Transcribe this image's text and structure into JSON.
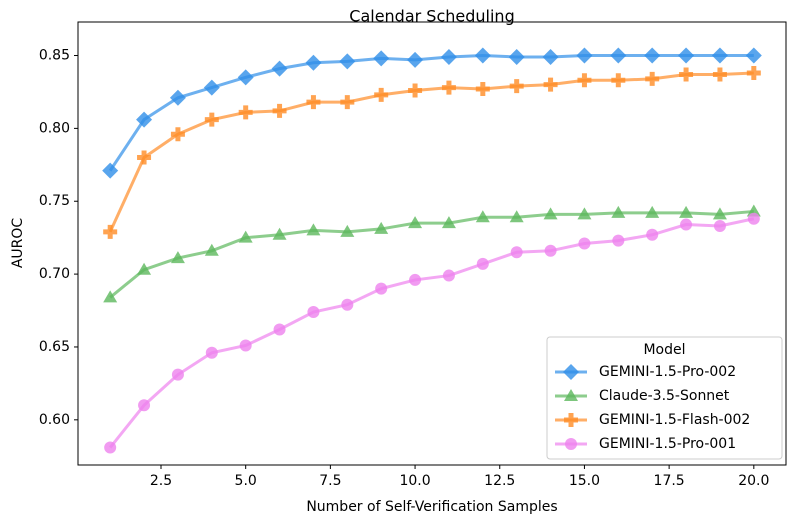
{
  "chart_data": {
    "type": "line",
    "title": "Calendar Scheduling",
    "x_label": "Number of Self-Verification Samples",
    "y_label": "AUROC",
    "x": [
      1,
      2,
      3,
      4,
      5,
      6,
      7,
      8,
      9,
      10,
      11,
      12,
      13,
      14,
      15,
      16,
      17,
      18,
      19,
      20
    ],
    "series": [
      {
        "name": "GEMINI-1.5-Pro-002",
        "color": "#2f8ee8",
        "marker": "diamond",
        "values": [
          0.771,
          0.806,
          0.821,
          0.828,
          0.835,
          0.841,
          0.845,
          0.846,
          0.848,
          0.847,
          0.849,
          0.85,
          0.849,
          0.849,
          0.85,
          0.85,
          0.85,
          0.85,
          0.85,
          0.85
        ]
      },
      {
        "name": "Claude-3.5-Sonnet",
        "color": "#5cb85c",
        "marker": "triangle",
        "values": [
          0.684,
          0.703,
          0.711,
          0.716,
          0.725,
          0.727,
          0.73,
          0.729,
          0.731,
          0.735,
          0.735,
          0.739,
          0.739,
          0.741,
          0.741,
          0.742,
          0.742,
          0.742,
          0.741,
          0.743
        ]
      },
      {
        "name": "GEMINI-1.5-Flash-002",
        "color": "#ff8c26",
        "marker": "plus",
        "values": [
          0.729,
          0.78,
          0.796,
          0.806,
          0.811,
          0.812,
          0.818,
          0.818,
          0.823,
          0.826,
          0.828,
          0.827,
          0.829,
          0.83,
          0.833,
          0.833,
          0.834,
          0.837,
          0.837,
          0.838
        ]
      },
      {
        "name": "GEMINI-1.5-Pro-001",
        "color": "#ee82ee",
        "marker": "circle",
        "values": [
          0.581,
          0.61,
          0.631,
          0.646,
          0.651,
          0.662,
          0.674,
          0.679,
          0.69,
          0.696,
          0.699,
          0.707,
          0.715,
          0.716,
          0.721,
          0.723,
          0.727,
          0.734,
          0.733,
          0.738
        ]
      }
    ],
    "xlim": [
      0.05,
      20.95
    ],
    "ylim": [
      0.569,
      0.873
    ],
    "xticks": [
      2.5,
      {
        "value": 5,
        "label": "5.0"
      },
      7.5,
      {
        "value": 10,
        "label": "10.0"
      },
      12.5,
      {
        "value": 15,
        "label": "15.0"
      },
      17.5,
      {
        "value": 20,
        "label": "20.0"
      }
    ],
    "yticks": [
      {
        "value": 0.6,
        "label": "0.60"
      },
      0.65,
      {
        "value": 0.7,
        "label": "0.70"
      },
      0.75,
      {
        "value": 0.8,
        "label": "0.80"
      },
      0.85
    ],
    "legend_title": "Model",
    "legend": "lower right",
    "grid": false
  }
}
